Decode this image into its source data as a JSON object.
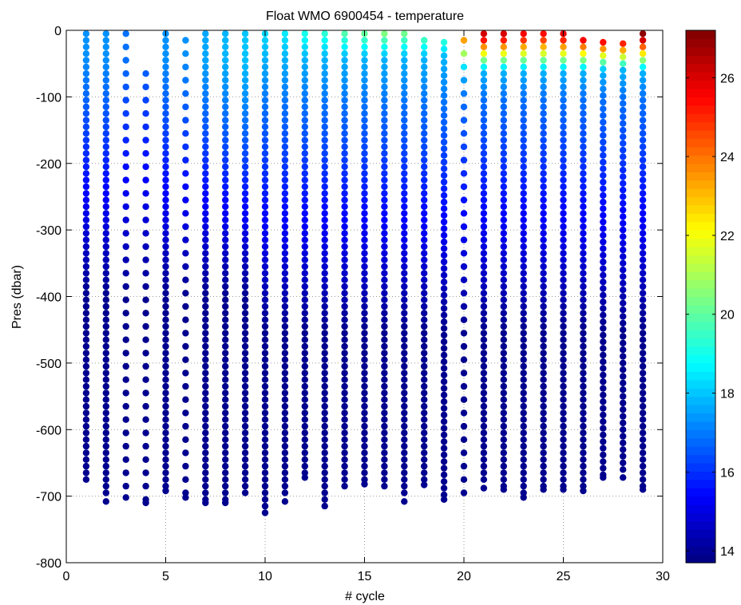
{
  "chart_data": {
    "type": "scatter",
    "title": "Float WMO 6900454 - temperature",
    "xlabel": "# cycle",
    "ylabel": "Pres (dbar)",
    "xlim": [
      0,
      30
    ],
    "ylim": [
      -800,
      0
    ],
    "xticks": [
      "0",
      "5",
      "10",
      "15",
      "20",
      "25",
      "30"
    ],
    "yticks": [
      "0",
      "-100",
      "-200",
      "-300",
      "-400",
      "-500",
      "-600",
      "-700",
      "-800"
    ],
    "grid": true,
    "colorbar": {
      "label_ticks": [
        "14",
        "16",
        "18",
        "20",
        "22",
        "24",
        "26"
      ],
      "range": [
        13.7,
        27.2
      ],
      "colormap": "jet",
      "placement": "right"
    },
    "profiles": [
      {
        "cycle": 1,
        "max_depth": -675,
        "top": -5,
        "spacing": 10,
        "surface_temp": 17.3
      },
      {
        "cycle": 2,
        "max_depth": -708,
        "top": -5,
        "spacing": 10,
        "surface_temp": 17.3
      },
      {
        "cycle": 3,
        "max_depth": -702,
        "top": -5,
        "spacing": 20,
        "surface_temp": 16.9
      },
      {
        "cycle": 4,
        "max_depth": -710,
        "top": -65,
        "spacing": 20,
        "surface_temp": 16.8
      },
      {
        "cycle": 5,
        "max_depth": -692,
        "top": -5,
        "spacing": 10,
        "surface_temp": 17.3
      },
      {
        "cycle": 6,
        "max_depth": -702,
        "top": -15,
        "spacing": 20,
        "surface_temp": 17.3
      },
      {
        "cycle": 7,
        "max_depth": -710,
        "top": -5,
        "spacing": 10,
        "surface_temp": 17.6
      },
      {
        "cycle": 8,
        "max_depth": -710,
        "top": -5,
        "spacing": 10,
        "surface_temp": 17.8
      },
      {
        "cycle": 9,
        "max_depth": -695,
        "top": -5,
        "spacing": 10,
        "surface_temp": 18.0
      },
      {
        "cycle": 10,
        "max_depth": -725,
        "top": -5,
        "spacing": 10,
        "surface_temp": 18.3
      },
      {
        "cycle": 11,
        "max_depth": -708,
        "top": -5,
        "spacing": 10,
        "surface_temp": 18.6
      },
      {
        "cycle": 12,
        "max_depth": -672,
        "top": -5,
        "spacing": 10,
        "surface_temp": 19.2
      },
      {
        "cycle": 13,
        "max_depth": -715,
        "top": -5,
        "spacing": 10,
        "surface_temp": 19.5
      },
      {
        "cycle": 14,
        "max_depth": -685,
        "top": -5,
        "spacing": 10,
        "surface_temp": 20.1
      },
      {
        "cycle": 15,
        "max_depth": -682,
        "top": -5,
        "spacing": 10,
        "surface_temp": 20.4
      },
      {
        "cycle": 16,
        "max_depth": -685,
        "top": -5,
        "spacing": 10,
        "surface_temp": 20.8
      },
      {
        "cycle": 17,
        "max_depth": -708,
        "top": -5,
        "spacing": 10,
        "surface_temp": 20.6
      },
      {
        "cycle": 18,
        "max_depth": -683,
        "top": -15,
        "spacing": 10,
        "surface_temp": 20.5
      },
      {
        "cycle": 19,
        "max_depth": -705,
        "top": -18,
        "spacing": 10,
        "surface_temp": 20.3
      },
      {
        "cycle": 20,
        "max_depth": -695,
        "top": -15,
        "spacing": 20,
        "surface_temp": 24.0
      },
      {
        "cycle": 21,
        "max_depth": -688,
        "top": -5,
        "spacing": 10,
        "surface_temp": 26.1
      },
      {
        "cycle": 22,
        "max_depth": -690,
        "top": -5,
        "spacing": 10,
        "surface_temp": 26.0
      },
      {
        "cycle": 23,
        "max_depth": -702,
        "top": -5,
        "spacing": 10,
        "surface_temp": 25.6
      },
      {
        "cycle": 24,
        "max_depth": -690,
        "top": -5,
        "spacing": 10,
        "surface_temp": 25.4
      },
      {
        "cycle": 25,
        "max_depth": -690,
        "top": -5,
        "spacing": 10,
        "surface_temp": 25.8
      },
      {
        "cycle": 26,
        "max_depth": -692,
        "top": -15,
        "spacing": 10,
        "surface_temp": 26.5
      },
      {
        "cycle": 27,
        "max_depth": -672,
        "top": -18,
        "spacing": 10,
        "surface_temp": 26.8
      },
      {
        "cycle": 28,
        "max_depth": -672,
        "top": -20,
        "spacing": 10,
        "surface_temp": 26.9
      },
      {
        "cycle": 29,
        "max_depth": -690,
        "top": -5,
        "spacing": 10,
        "surface_temp": 27.0
      }
    ]
  }
}
